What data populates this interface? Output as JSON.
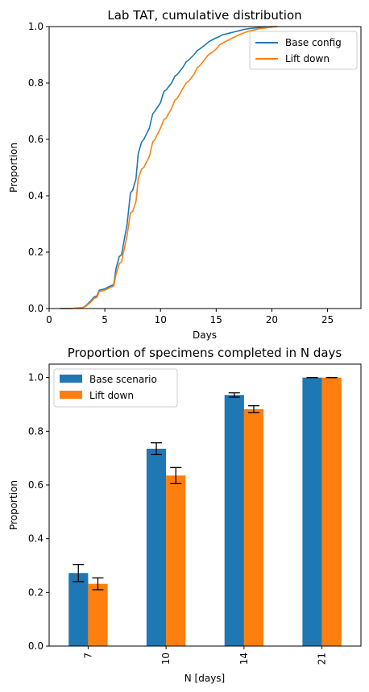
{
  "chart_data": [
    {
      "type": "line",
      "title": "Lab TAT, cumulative distribution",
      "xlabel": "Days",
      "ylabel": "Proportion",
      "xlim": [
        0,
        28
      ],
      "ylim": [
        0,
        1.0
      ],
      "xticks": [
        0,
        5,
        10,
        15,
        20,
        25
      ],
      "yticks": [
        0.0,
        0.2,
        0.4,
        0.6,
        0.8,
        1.0
      ],
      "grid": false,
      "legend_position": "top-right",
      "series": [
        {
          "name": "Base config",
          "color": "#1f77b4",
          "x": [
            1,
            2,
            2.5,
            3,
            3.3,
            3.8,
            4,
            4.3,
            4.5,
            5,
            5.5,
            5.8,
            6,
            6.3,
            6.5,
            7,
            7.3,
            7.5,
            7.8,
            8,
            8.3,
            8.5,
            9,
            9.3,
            9.5,
            10,
            10.3,
            10.5,
            11,
            11.3,
            11.5,
            12,
            12.3,
            12.5,
            13,
            13.3,
            13.5,
            14,
            14.3,
            14.5,
            15,
            15.3,
            15.5,
            16,
            16.5,
            17,
            17.5,
            18,
            19,
            20,
            20.5
          ],
          "y": [
            0,
            0,
            0.002,
            0.003,
            0.01,
            0.03,
            0.04,
            0.045,
            0.065,
            0.07,
            0.08,
            0.085,
            0.14,
            0.185,
            0.19,
            0.3,
            0.41,
            0.42,
            0.46,
            0.55,
            0.59,
            0.6,
            0.64,
            0.69,
            0.7,
            0.73,
            0.77,
            0.775,
            0.8,
            0.825,
            0.83,
            0.855,
            0.875,
            0.88,
            0.9,
            0.915,
            0.92,
            0.935,
            0.945,
            0.95,
            0.96,
            0.965,
            0.97,
            0.975,
            0.98,
            0.985,
            0.99,
            0.993,
            0.997,
            1.0,
            1.0
          ]
        },
        {
          "name": "Lift down",
          "color": "#ff7f0e",
          "x": [
            1,
            2,
            2.5,
            3,
            3.3,
            3.8,
            4,
            4.3,
            4.5,
            5,
            5.5,
            5.8,
            6,
            6.3,
            6.5,
            7,
            7.3,
            7.5,
            7.8,
            8,
            8.3,
            8.5,
            9,
            9.3,
            9.5,
            10,
            10.3,
            10.5,
            11,
            11.3,
            11.5,
            12,
            12.3,
            12.5,
            13,
            13.3,
            13.5,
            14,
            14.3,
            14.5,
            15,
            15.3,
            15.5,
            16,
            16.5,
            17,
            17.5,
            18,
            19,
            20,
            20.5
          ],
          "y": [
            0,
            0,
            0.002,
            0.003,
            0.008,
            0.025,
            0.035,
            0.04,
            0.06,
            0.065,
            0.075,
            0.08,
            0.12,
            0.16,
            0.165,
            0.26,
            0.34,
            0.345,
            0.38,
            0.46,
            0.495,
            0.5,
            0.54,
            0.59,
            0.6,
            0.64,
            0.67,
            0.675,
            0.71,
            0.74,
            0.745,
            0.78,
            0.8,
            0.805,
            0.83,
            0.855,
            0.86,
            0.885,
            0.9,
            0.905,
            0.92,
            0.935,
            0.94,
            0.95,
            0.96,
            0.97,
            0.978,
            0.985,
            0.993,
            0.998,
            1.0
          ]
        }
      ]
    },
    {
      "type": "bar",
      "title": "Proportion of specimens completed in N days",
      "xlabel": "N [days]",
      "ylabel": "Proportion",
      "ylim": [
        0,
        1.05
      ],
      "yticks": [
        0.0,
        0.2,
        0.4,
        0.6,
        0.8,
        1.0
      ],
      "categories": [
        "7",
        "10",
        "14",
        "21"
      ],
      "grid": false,
      "legend_position": "top-left",
      "series": [
        {
          "name": "Base scenario",
          "color": "#1f77b4",
          "values": [
            0.272,
            0.735,
            0.935,
            1.0
          ],
          "error": [
            0.032,
            0.022,
            0.008,
            0.0
          ]
        },
        {
          "name": "Lift down",
          "color": "#ff7f0e",
          "values": [
            0.232,
            0.635,
            0.882,
            1.0
          ],
          "error": [
            0.022,
            0.03,
            0.013,
            0.0
          ]
        }
      ]
    }
  ]
}
